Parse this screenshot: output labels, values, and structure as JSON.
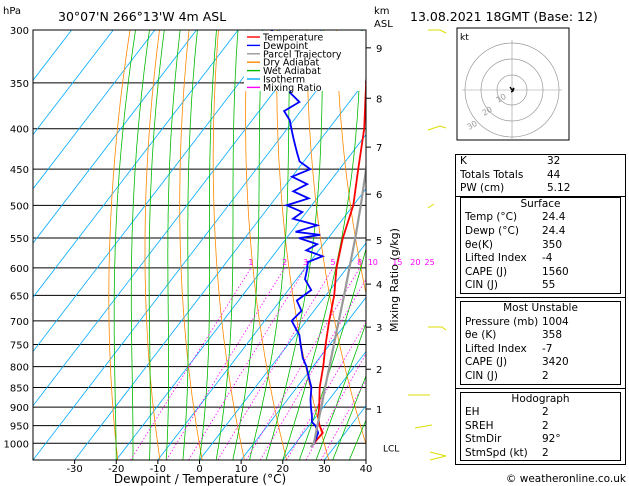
{
  "header": {
    "location": "30°07'N  266°13'W  4m  ASL",
    "datetime": "13.08.2021  18GMT  (Base: 12)",
    "hpa_label": "hPa",
    "km_label": "km",
    "asl_label": "ASL"
  },
  "chart_data": {
    "type": "line",
    "xlabel": "Dewpoint / Temperature (°C)",
    "ylabel_right": "Mixing Ratio (g/kg)",
    "x_ticks": [
      -30,
      -20,
      -10,
      0,
      10,
      20,
      30,
      40
    ],
    "xlim": [
      -40,
      40
    ],
    "pressure_levels": [
      300,
      350,
      400,
      450,
      500,
      550,
      600,
      650,
      700,
      750,
      800,
      850,
      900,
      950,
      1000
    ],
    "plim": [
      300,
      1050
    ],
    "km_ticks": [
      {
        "label": "1",
        "p": 905
      },
      {
        "label": "2",
        "p": 806
      },
      {
        "label": "3",
        "p": 713
      },
      {
        "label": "4",
        "p": 629
      },
      {
        "label": "5",
        "p": 553
      },
      {
        "label": "6",
        "p": 484
      },
      {
        "label": "7",
        "p": 422
      },
      {
        "label": "8",
        "p": 366
      },
      {
        "label": "9",
        "p": 316
      }
    ],
    "lcl_label": "LCL",
    "lcl_p": 1012,
    "mixing_ratio_labels": [
      "1",
      "2",
      "3",
      "5",
      "8",
      "10",
      "15",
      "20",
      "25"
    ],
    "mixing_ratio_values": [
      1,
      2,
      3,
      5,
      8,
      10,
      15,
      20,
      25
    ],
    "legend": [
      {
        "name": "Temperature",
        "color": "#ff0000"
      },
      {
        "name": "Dewpoint",
        "color": "#0000ff"
      },
      {
        "name": "Parcel Trajectory",
        "color": "#999999"
      },
      {
        "name": "Dry Adiabat",
        "color": "#ff8800"
      },
      {
        "name": "Wet Adiabat",
        "color": "#00bb00"
      },
      {
        "name": "Isotherm",
        "color": "#00aaff"
      },
      {
        "name": "Mixing Ratio",
        "color": "#ff00ff"
      }
    ],
    "series": [
      {
        "name": "Temperature",
        "color": "#ff0000",
        "p": [
          1000,
          970,
          950,
          925,
          900,
          850,
          800,
          750,
          700,
          650,
          600,
          550,
          500,
          450,
          400,
          350,
          300
        ],
        "t": [
          24.4,
          24.6,
          22.5,
          20.5,
          19.0,
          15.5,
          12.5,
          9.0,
          5.5,
          2.0,
          -2.5,
          -6.5,
          -10.0,
          -15.5,
          -21.5,
          -29.5,
          -38.5
        ]
      },
      {
        "name": "Dewpoint",
        "color": "#0000ff",
        "p": [
          1000,
          985,
          970,
          960,
          950,
          940,
          925,
          900,
          880,
          850,
          820,
          800,
          780,
          750,
          730,
          700,
          680,
          660,
          640,
          620,
          600,
          590,
          580,
          570,
          560,
          550,
          545,
          540,
          530,
          520,
          510,
          500,
          490,
          480,
          470,
          460,
          450,
          440,
          430,
          420,
          410,
          400,
          390,
          380,
          370,
          360,
          350,
          340,
          330,
          320,
          310,
          300
        ],
        "t": [
          24.4,
          24.0,
          23.5,
          22.5,
          21.5,
          20.0,
          19.0,
          17.0,
          15.5,
          13.5,
          10.5,
          8.5,
          6.0,
          3.0,
          1.0,
          -3.5,
          -3.0,
          -6.0,
          -4.5,
          -8.0,
          -9.5,
          -10.5,
          -8.0,
          -13.0,
          -11.5,
          -17.0,
          -12.5,
          -19.0,
          -15.0,
          -22.0,
          -21.0,
          -26.0,
          -22.0,
          -27.0,
          -25.0,
          -30.0,
          -27.0,
          -31.0,
          -33.0,
          -35.0,
          -37.0,
          -39.0,
          -41.0,
          -44.0,
          -42.0,
          -46.0,
          -47.0,
          -50.0,
          -52.0,
          -55.0,
          -58.0,
          -62.0
        ]
      },
      {
        "name": "Parcel Trajectory",
        "color": "#999999",
        "p": [
          1012,
          1000,
          950,
          900,
          850,
          800,
          750,
          700,
          650,
          600,
          550,
          500,
          450,
          400,
          350,
          300
        ],
        "t": [
          24.4,
          24.4,
          22.0,
          19.5,
          16.8,
          14.0,
          11.0,
          7.8,
          4.4,
          0.6,
          -3.5,
          -8.2,
          -13.6,
          -19.8,
          -27.0,
          -35.5
        ]
      }
    ]
  },
  "hodograph": {
    "label": "kt",
    "ring_labels": [
      "10",
      "20",
      "30"
    ]
  },
  "indices": {
    "rows": [
      {
        "k": "K",
        "v": "32"
      },
      {
        "k": "Totals Totals",
        "v": "44"
      },
      {
        "k": "PW (cm)",
        "v": "5.12"
      }
    ],
    "surface": {
      "title": "Surface",
      "rows": [
        {
          "k": "Temp (°C)",
          "v": "24.4"
        },
        {
          "k": "Dewp (°C)",
          "v": "24.4"
        },
        {
          "k": "θe(K)",
          "v": "350"
        },
        {
          "k": "Lifted Index",
          "v": "-4"
        },
        {
          "k": "CAPE (J)",
          "v": "1560"
        },
        {
          "k": "CIN (J)",
          "v": "55"
        }
      ]
    },
    "most_unstable": {
      "title": "Most Unstable",
      "rows": [
        {
          "k": "Pressure (mb)",
          "v": "1004"
        },
        {
          "k": "θe (K)",
          "v": "358"
        },
        {
          "k": "Lifted Index",
          "v": "-7"
        },
        {
          "k": "CAPE (J)",
          "v": "3420"
        },
        {
          "k": "CIN (J)",
          "v": "2"
        }
      ]
    },
    "hodograph_table": {
      "title": "Hodograph",
      "rows": [
        {
          "k": "EH",
          "v": "2"
        },
        {
          "k": "SREH",
          "v": "2"
        },
        {
          "k": "StmDir",
          "v": "92°"
        },
        {
          "k": "StmSpd (kt)",
          "v": "2"
        }
      ]
    }
  },
  "copyright": "© weatheronline.co.uk"
}
